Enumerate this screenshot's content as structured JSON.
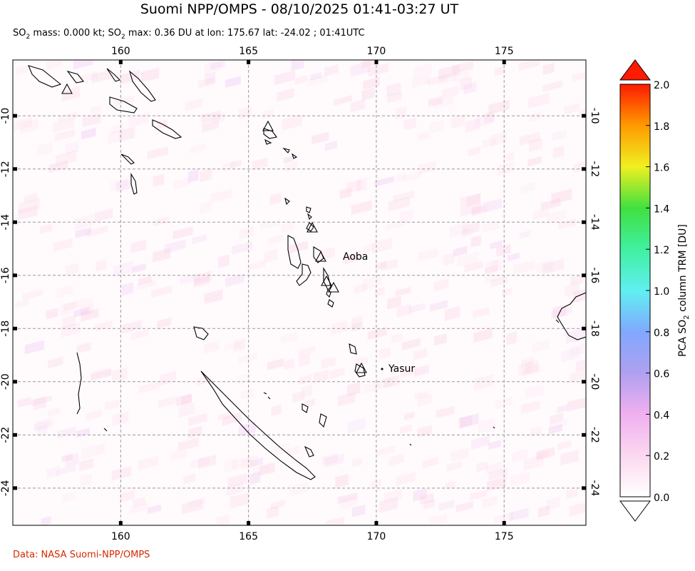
{
  "title": "Suomi NPP/OMPS - 08/10/2025 01:41-03:27 UT",
  "subtitle": [
    "SO",
    "2",
    " mass: 0.000 kt; SO",
    "2",
    " max: 0.36 DU at lon: 175.67 lat: -24.02 ; 01:41UTC"
  ],
  "map": {
    "xlim": [
      155.78,
      178.2
    ],
    "ylim": [
      -25.4,
      -7.9
    ],
    "xticks": [
      160,
      165,
      170,
      175
    ],
    "yticks": [
      -10,
      -12,
      -14,
      -16,
      -18,
      -20,
      -22,
      -24
    ],
    "annotations": [
      "Aoba",
      "Yasur"
    ]
  },
  "colorbar": {
    "label": [
      "PCA SO",
      "2",
      " column TRM [DU]"
    ],
    "lim": [
      0,
      2
    ],
    "ticks": [
      {
        "value": 0,
        "label": "0.0"
      },
      {
        "value": 0.2,
        "label": "0.2"
      },
      {
        "value": 0.4,
        "label": "0.4"
      },
      {
        "value": 0.6,
        "label": "0.6"
      },
      {
        "value": 0.8,
        "label": "0.8"
      },
      {
        "value": 1,
        "label": "1.0"
      },
      {
        "value": 1.2,
        "label": "1.2"
      },
      {
        "value": 1.4,
        "label": "1.4"
      },
      {
        "value": 1.6,
        "label": "1.6"
      },
      {
        "value": 1.8,
        "label": "1.8"
      },
      {
        "value": 2,
        "label": "2.0"
      }
    ]
  },
  "footer": "Data: NASA Suomi-NPP/OMPS"
}
